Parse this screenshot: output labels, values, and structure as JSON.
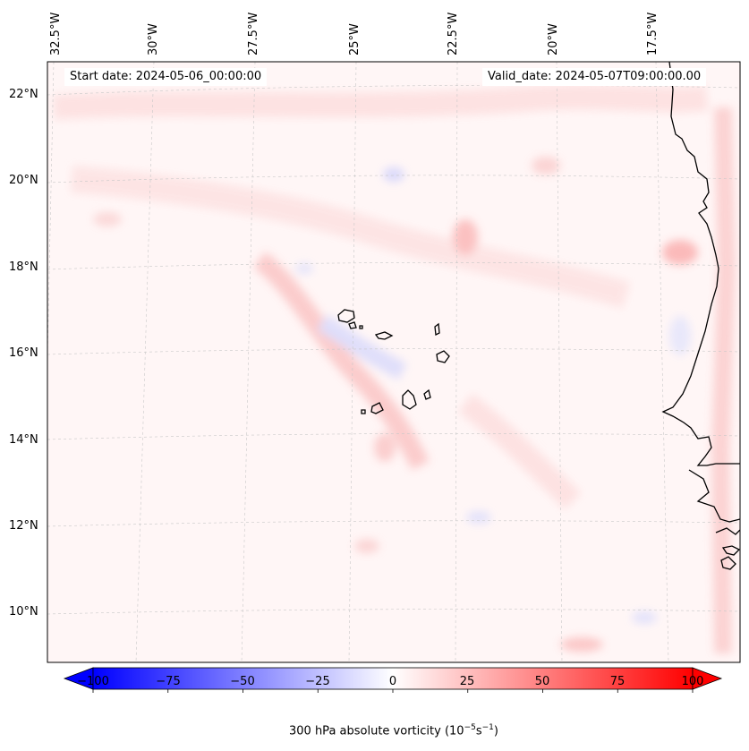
{
  "map": {
    "projection": "lambert-conformal",
    "lon_labels": [
      "32.5°W",
      "30°W",
      "27.5°W",
      "25°W",
      "22.5°W",
      "20°W",
      "17.5°W"
    ],
    "lat_labels": [
      "22°N",
      "20°N",
      "18°N",
      "16°N",
      "14°N",
      "12°N",
      "10°N"
    ],
    "gridlines": true,
    "coastline_color": "#000000"
  },
  "header": {
    "start_label": "Start date: 2024-05-06_00:00:00",
    "valid_label": "Valid_date: 2024-05-07T09:00:00.00"
  },
  "colorbar": {
    "title_prefix": "300 hPa absolute vorticity (10",
    "title_exp1": "−5",
    "title_mid": "s",
    "title_exp2": "−1",
    "title_suffix": ")",
    "ticks": [
      "−100",
      "−75",
      "−50",
      "−25",
      "0",
      "25",
      "50",
      "75",
      "100"
    ],
    "vmin": -100,
    "vmax": 100,
    "colormap": "bwr",
    "extend": "both",
    "low_color": "#0000ff",
    "mid_color": "#ffffff",
    "high_color": "#ff0000"
  }
}
